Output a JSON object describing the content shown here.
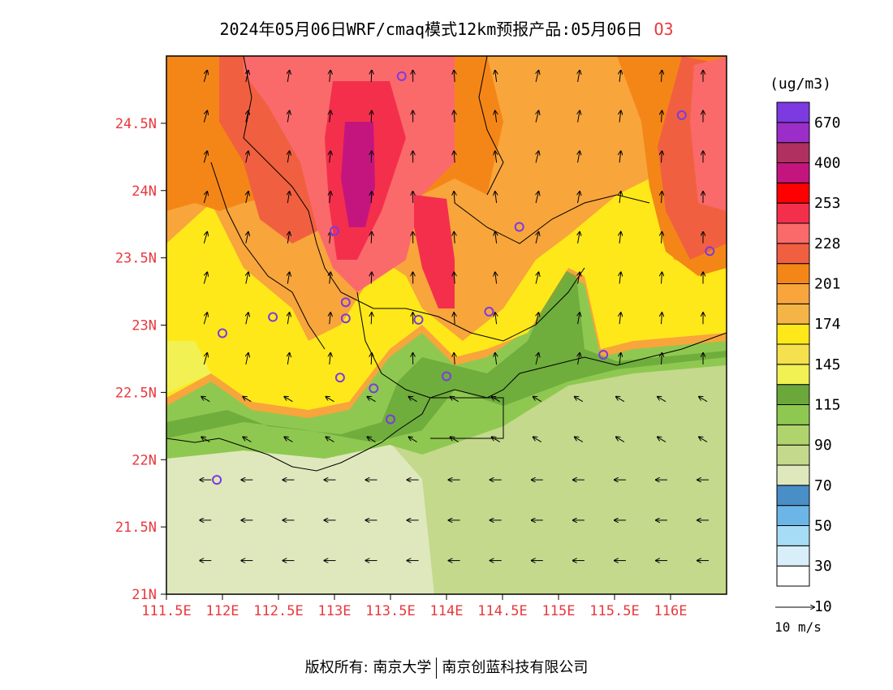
{
  "title": {
    "main": "2024年05月06日WRF/cmaq模式12km预报产品:05月06日",
    "species": "O3"
  },
  "axes": {
    "lat_labels": [
      "24.5N",
      "24N",
      "23.5N",
      "23N",
      "22.5N",
      "22N",
      "21.5N",
      "21N"
    ],
    "lon_labels": [
      "111.5E",
      "112E",
      "112.5E",
      "113E",
      "113.5E",
      "114E",
      "114.5E",
      "115E",
      "115.5E",
      "116E"
    ],
    "label_color": "#e8383d"
  },
  "legend": {
    "unit": "(ug/m3)",
    "labels": [
      "670",
      "400",
      "253",
      "228",
      "201",
      "174",
      "145",
      "115",
      "90",
      "70",
      "50",
      "30",
      "10"
    ],
    "colors": [
      "#ffffff",
      "#d8eef8",
      "#a6dcf5",
      "#6bb6e6",
      "#4a8ec8",
      "#dfe8bd",
      "#c4d98c",
      "#b0d46d",
      "#8fc850",
      "#6aa83a",
      "#f1f154",
      "#f5e04e",
      "#ffe81a",
      "#f5b446",
      "#f8a53c",
      "#f48617",
      "#f06040",
      "#fb6a6a",
      "#f42f4c",
      "#ff0000",
      "#c4157f",
      "#b03060",
      "#9b2ec8",
      "#7c3ae0"
    ]
  },
  "wind_scale": {
    "label": "10 m/s"
  },
  "footer": {
    "left": "版权所有: 南京大学",
    "right": "南京创蓝科技有限公司"
  },
  "chart_data": {
    "type": "heatmap",
    "title": "2024年05月06日WRF/cmaq模式12km预报产品:05月06日 O3",
    "xlabel": "",
    "ylabel": "",
    "xlim": [
      111.5,
      116.5
    ],
    "ylim": [
      21.0,
      25.0
    ],
    "unit": "ug/m3",
    "levels": [
      10,
      30,
      50,
      70,
      90,
      115,
      145,
      174,
      201,
      228,
      253,
      400,
      670
    ],
    "stations": [
      {
        "lon": 113.6,
        "lat": 24.85
      },
      {
        "lon": 116.1,
        "lat": 24.56
      },
      {
        "lon": 113.0,
        "lat": 23.7
      },
      {
        "lon": 114.65,
        "lat": 23.73
      },
      {
        "lon": 116.35,
        "lat": 23.55
      },
      {
        "lon": 113.1,
        "lat": 23.17
      },
      {
        "lon": 112.45,
        "lat": 23.06
      },
      {
        "lon": 113.1,
        "lat": 23.05
      },
      {
        "lon": 113.75,
        "lat": 23.04
      },
      {
        "lon": 114.38,
        "lat": 23.1
      },
      {
        "lon": 112.0,
        "lat": 22.94
      },
      {
        "lon": 115.4,
        "lat": 22.78
      },
      {
        "lon": 113.05,
        "lat": 22.61
      },
      {
        "lon": 113.35,
        "lat": 22.53
      },
      {
        "lon": 114.0,
        "lat": 22.62
      },
      {
        "lon": 113.5,
        "lat": 22.3
      },
      {
        "lon": 111.95,
        "lat": 21.85
      }
    ]
  }
}
